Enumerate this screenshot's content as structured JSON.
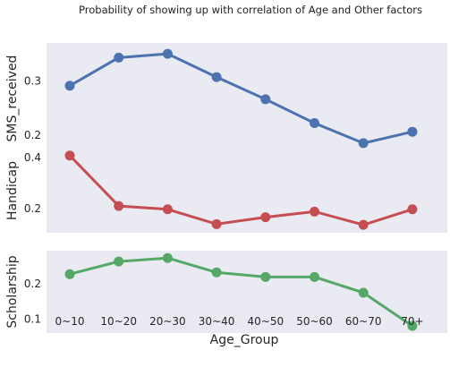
{
  "chart_data": {
    "type": "line",
    "title": "Probability of showing up with correlation of Age and Other factors",
    "xlabel": "Age_Group",
    "categories": [
      "0~10",
      "10~20",
      "20~30",
      "30~40",
      "40~50",
      "50~60",
      "60~70",
      "70+"
    ],
    "grid": false,
    "panels": [
      {
        "ylabel": "SMS_received",
        "color": "#4c72b0",
        "ylim": [
          0.165,
          0.37
        ],
        "yticks": [
          0.2,
          0.3
        ],
        "yticklabels": [
          "0.2",
          "0.3"
        ],
        "values": [
          0.291,
          0.343,
          0.35,
          0.307,
          0.266,
          0.222,
          0.185,
          0.206
        ]
      },
      {
        "ylabel": "Handicap",
        "color": "#c44e52",
        "ylim": [
          0.105,
          0.435
        ],
        "yticks": [
          0.2,
          0.4
        ],
        "yticklabels": [
          "0.2",
          "0.4"
        ],
        "values": [
          0.408,
          0.21,
          0.197,
          0.139,
          0.166,
          0.188,
          0.136,
          0.197
        ]
      },
      {
        "ylabel": "Scholarship",
        "color": "#55a868",
        "ylim": [
          0.06,
          0.295
        ],
        "yticks": [
          0.1,
          0.2
        ],
        "yticklabels": [
          "0.1",
          "0.2"
        ],
        "values": [
          0.228,
          0.264,
          0.274,
          0.233,
          0.22,
          0.22,
          0.175,
          0.08
        ]
      }
    ]
  }
}
